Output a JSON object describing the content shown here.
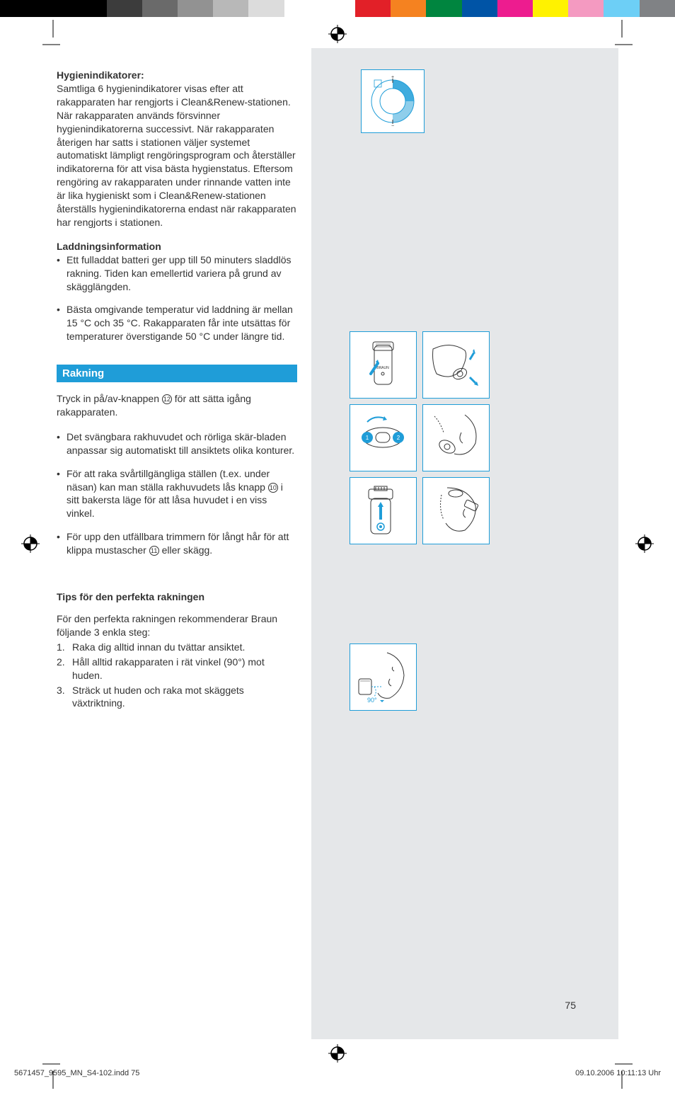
{
  "colorbar": [
    "#000000",
    "#000000",
    "#000000",
    "#3c3c3c",
    "#6a6a6a",
    "#929292",
    "#b8b8b8",
    "#dcdcdc",
    "#ffffff",
    "#ffffff",
    "#e22028",
    "#f58220",
    "#00853f",
    "#0054a6",
    "#ed1c8f",
    "#fff200",
    "#f49ac1",
    "#6dcff6",
    "#808285"
  ],
  "hygien": {
    "heading": "Hygienindikatorer:",
    "text": "Samtliga 6 hygienindikatorer visas efter att rakapparaten har rengjorts i Clean&Renew-stationen. När rakapparaten används försvinner hygienindikatorerna successivt. När rakapparaten återigen har satts i stationen väljer systemet automatiskt lämpligt rengöringsprogram och återställer indikatorerna för att visa bästa hygienstatus. Eftersom rengöring av rakapparaten under rinnande vatten inte är lika hygieniskt som i Clean&Renew-stationen återställs hygienindikatorerna endast när rakapparaten har rengjorts i stationen."
  },
  "laddning": {
    "heading": "Laddningsinformation",
    "items": [
      "Ett fulladdat batteri ger upp till 50 minuters sladdlös rakning. Tiden kan emellertid variera på grund av skägglängden.",
      "Bästa omgivande temperatur vid laddning är mellan 15 °C och 35 °C. Rakapparaten får inte utsättas för temperaturer överstigande 50 °C under längre tid."
    ]
  },
  "rakning": {
    "heading": "Rakning",
    "intro_pre": "Tryck in på/av-knappen ",
    "intro_num": "12",
    "intro_post": " för att sätta igång rakapparaten.",
    "items": [
      {
        "pre": "Det svängbara rakhuvudet och rörliga skär-bladen anpassar sig automatiskt till ansiktets olika konturer.",
        "num": null,
        "post": ""
      },
      {
        "pre": "För att raka svårtillgängliga ställen (t.ex. under näsan) kan man ställa rakhuvudets lås knapp ",
        "num": "10",
        "post": " i sitt bakersta läge för att låsa huvudet i en viss vinkel."
      },
      {
        "pre": "För upp den utfällbara trimmern för långt hår för att klippa mustascher ",
        "num": "11",
        "post": " eller skägg."
      }
    ]
  },
  "tips": {
    "heading": "Tips för den perfekta rakningen",
    "intro": "För den perfekta rakningen rekommenderar Braun följande 3 enkla steg:",
    "steps": [
      "Raka dig alltid innan du tvättar ansiktet.",
      "Håll alltid rakapparaten i rät vinkel (90°) mot huden.",
      "Sträck ut huden och raka mot skäggets växtriktning."
    ]
  },
  "illus": {
    "angle_label": "90°",
    "shaver_brand": "BRAUN",
    "grid_badges": [
      "1",
      "2"
    ]
  },
  "page_number": "75",
  "footer": {
    "file": "5671457_9595_MN_S4-102.indd   75",
    "timestamp": "09.10.2006   10:11:13 Uhr"
  },
  "colors": {
    "blue": "#1f9dd8",
    "illus_border": "#1f9dd8",
    "grey_bg": "#e5e7e9"
  }
}
